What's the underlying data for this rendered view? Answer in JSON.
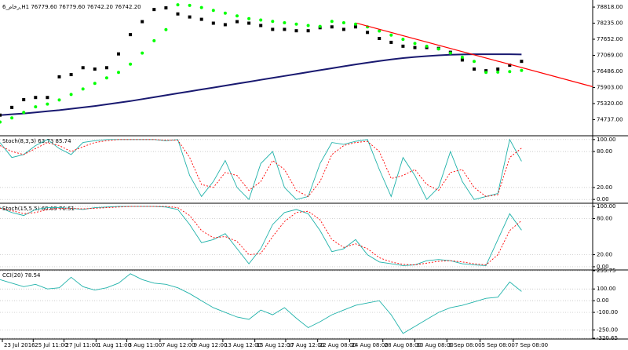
{
  "chart_data": [
    {
      "type": "line",
      "title": "6_رخام,H1  76779.60 76779.60 76742.20 76742.20",
      "x": [
        0,
        1,
        2,
        3,
        4,
        5,
        6,
        7,
        8,
        9,
        10,
        11,
        12,
        13,
        14,
        15,
        16,
        17,
        18,
        19,
        20,
        21,
        22,
        23,
        24,
        25,
        26,
        27,
        28,
        29,
        30,
        31,
        32,
        33,
        34,
        35,
        36,
        37,
        38,
        39,
        40,
        41,
        42,
        43,
        44
      ],
      "xlim": [
        0,
        50
      ],
      "ylim": [
        74180,
        78990
      ],
      "grid": false,
      "yticks": [
        {
          "value": 78818,
          "label": "78818.00"
        },
        {
          "value": 78235,
          "label": "78235.00"
        },
        {
          "value": 77652,
          "label": "77652.00"
        },
        {
          "value": 77069,
          "label": "77069.00"
        },
        {
          "value": 76486,
          "label": "76486.00"
        },
        {
          "value": 75903,
          "label": "75903.00"
        },
        {
          "value": 75320,
          "label": "75320.00"
        },
        {
          "value": 74737,
          "label": "74737.00"
        }
      ],
      "series": [
        {
          "color": "#191970",
          "style": "line",
          "values": [
            74900,
            74930,
            74960,
            75000,
            75040,
            75080,
            75130,
            75180,
            75230,
            75290,
            75350,
            75410,
            75480,
            75550,
            75620,
            75690,
            75760,
            75830,
            75900,
            75970,
            76040,
            76110,
            76180,
            76250,
            76320,
            76390,
            76460,
            76530,
            76600,
            76670,
            76740,
            76800,
            76860,
            76920,
            76970,
            77010,
            77040,
            77070,
            77090,
            77100,
            77110,
            77110,
            77110,
            77110,
            77100
          ]
        },
        {
          "color": "#000000",
          "style": "squares",
          "values": [
            74900,
            75180,
            75460,
            75540,
            75540,
            76290,
            76370,
            76620,
            76570,
            76620,
            77120,
            77820,
            78290,
            78730,
            78790,
            78570,
            78460,
            78375,
            78235,
            78180,
            78290,
            78235,
            78150,
            78010,
            78010,
            77960,
            77960,
            78070,
            78100,
            78010,
            78100,
            77900,
            77680,
            77540,
            77400,
            77350,
            77350,
            77320,
            77180,
            76900,
            76570,
            76510,
            76570,
            76710,
            76850
          ]
        },
        {
          "color": "#00ff00",
          "style": "dots",
          "values": [
            74650,
            74800,
            75000,
            75200,
            75300,
            75450,
            75650,
            75850,
            76050,
            76250,
            76450,
            76750,
            77150,
            77600,
            78000,
            78900,
            78880,
            78800,
            78700,
            78600,
            78500,
            78400,
            78350,
            78300,
            78250,
            78200,
            78150,
            78120,
            78300,
            78250,
            78200,
            78100,
            77950,
            77800,
            77650,
            77500,
            77400,
            77300,
            77150,
            77000,
            76850,
            76450,
            76460,
            76480,
            76520
          ]
        }
      ],
      "lines": [
        {
          "color": "#ff0000",
          "x": [
            30.1,
            50
          ],
          "y": [
            78235,
            75930
          ]
        }
      ]
    },
    {
      "type": "line",
      "title": "Stoch(8,3,3) 63.73 85.74",
      "x": [
        0,
        1,
        2,
        3,
        4,
        5,
        6,
        7,
        8,
        9,
        10,
        11,
        12,
        13,
        14,
        15,
        16,
        17,
        18,
        19,
        20,
        21,
        22,
        23,
        24,
        25,
        26,
        27,
        28,
        29,
        30,
        31,
        32,
        33,
        34,
        35,
        36,
        37,
        38,
        39,
        40,
        41,
        42,
        43,
        44
      ],
      "xlim": [
        0,
        50
      ],
      "ylim": [
        -5,
        105
      ],
      "grid": true,
      "yticks": [
        {
          "value": 100,
          "label": "100.00"
        },
        {
          "value": 80,
          "label": "80.00"
        },
        {
          "value": 20,
          "label": "20.00"
        },
        {
          "value": 0,
          "label": "0.00"
        }
      ],
      "series": [
        {
          "color": "#20b2aa",
          "style": "line",
          "values": [
            95,
            70,
            75,
            90,
            100,
            85,
            75,
            95,
            98,
            100,
            100,
            100,
            100,
            100,
            98,
            100,
            40,
            5,
            30,
            65,
            20,
            0,
            60,
            80,
            20,
            0,
            5,
            60,
            95,
            92,
            97,
            100,
            50,
            5,
            70,
            40,
            0,
            20,
            80,
            30,
            0,
            5,
            10,
            100,
            63.73
          ]
        },
        {
          "color": "#ff0000",
          "style": "dash",
          "values": [
            90,
            80,
            75,
            85,
            95,
            90,
            80,
            88,
            95,
            98,
            100,
            100,
            100,
            100,
            99,
            99,
            70,
            25,
            20,
            45,
            40,
            15,
            30,
            65,
            50,
            15,
            5,
            30,
            75,
            90,
            95,
            97,
            80,
            35,
            40,
            50,
            25,
            15,
            45,
            50,
            20,
            5,
            8,
            70,
            85.74
          ]
        }
      ]
    },
    {
      "type": "line",
      "title": "Stoch(15,5,5) 60.69 76.51",
      "x": [
        0,
        1,
        2,
        3,
        4,
        5,
        6,
        7,
        8,
        9,
        10,
        11,
        12,
        13,
        14,
        15,
        16,
        17,
        18,
        19,
        20,
        21,
        22,
        23,
        24,
        25,
        26,
        27,
        28,
        29,
        30,
        31,
        32,
        33,
        34,
        35,
        36,
        37,
        38,
        39,
        40,
        41,
        42,
        43,
        44
      ],
      "xlim": [
        0,
        50
      ],
      "ylim": [
        -4,
        104
      ],
      "grid": true,
      "yticks": [
        {
          "value": 100,
          "label": "100.00"
        },
        {
          "value": 80,
          "label": "80.00"
        },
        {
          "value": 20,
          "label": "20.00"
        },
        {
          "value": 0,
          "label": "0.00"
        }
      ],
      "series": [
        {
          "color": "#20b2aa",
          "style": "line",
          "values": [
            98,
            90,
            85,
            95,
            98,
            98,
            97,
            95,
            98,
            99,
            100,
            100,
            100,
            100,
            99,
            95,
            70,
            40,
            45,
            55,
            30,
            5,
            30,
            70,
            90,
            95,
            88,
            60,
            25,
            30,
            45,
            20,
            8,
            5,
            2,
            3,
            10,
            12,
            10,
            5,
            3,
            2,
            45,
            88,
            60.69
          ]
        },
        {
          "color": "#ff0000",
          "style": "dash",
          "values": [
            97,
            93,
            88,
            90,
            95,
            97,
            97,
            96,
            97,
            98,
            99,
            100,
            100,
            100,
            100,
            98,
            85,
            60,
            48,
            50,
            42,
            20,
            22,
            50,
            75,
            90,
            92,
            78,
            45,
            32,
            38,
            30,
            15,
            8,
            4,
            3,
            6,
            9,
            10,
            8,
            5,
            3,
            20,
            60,
            76.51
          ]
        }
      ]
    },
    {
      "type": "line",
      "title": "CCI(20) 78.54",
      "x": [
        0,
        1,
        2,
        3,
        4,
        5,
        6,
        7,
        8,
        9,
        10,
        11,
        12,
        13,
        14,
        15,
        16,
        17,
        18,
        19,
        20,
        21,
        22,
        23,
        24,
        25,
        26,
        27,
        28,
        29,
        30,
        31,
        32,
        33,
        34,
        35,
        36,
        37,
        38,
        39,
        40,
        41,
        42,
        43,
        44
      ],
      "xlim": [
        0,
        50
      ],
      "ylim": [
        -320.65,
        255.75
      ],
      "grid": true,
      "yticks": [
        255.75,
        {
          "value": 100,
          "label": "100.00"
        },
        {
          "value": 0,
          "label": "0.00"
        },
        {
          "value": -100,
          "label": "-100.00"
        },
        {
          "value": -250,
          "label": "-250.00"
        },
        -320.65
      ],
      "xticks": [
        {
          "value": 0.2,
          "label": "23 Jul 2016"
        },
        {
          "value": 2.8,
          "label": "25 Jul 11:00"
        },
        {
          "value": 5.4,
          "label": "27 Jul 11:00"
        },
        {
          "value": 8.1,
          "label": "1 Aug 11:00"
        },
        {
          "value": 10.7,
          "label": "3 Aug 11:00"
        },
        {
          "value": 13.5,
          "label": "7 Aug 12:00"
        },
        {
          "value": 16.2,
          "label": "9 Aug 12:00"
        },
        {
          "value": 18.8,
          "label": "13 Aug 12:00"
        },
        {
          "value": 21.5,
          "label": "15 Aug 12:00"
        },
        {
          "value": 24.1,
          "label": "17 Aug 12:00"
        },
        {
          "value": 26.8,
          "label": "22 Aug 08:00"
        },
        {
          "value": 29.5,
          "label": "24 Aug 08:00"
        },
        {
          "value": 32.3,
          "label": "28 Aug 08:00"
        },
        {
          "value": 35.0,
          "label": "30 Aug 08:00"
        },
        {
          "value": 37.7,
          "label": "3 Sep 08:00"
        },
        {
          "value": 40.5,
          "label": "5 Sep 08:00"
        },
        {
          "value": 43.3,
          "label": "7 Sep 08:00"
        }
      ],
      "series": [
        {
          "color": "#20b2aa",
          "style": "line",
          "values": [
            180,
            150,
            120,
            140,
            100,
            110,
            200,
            120,
            90,
            110,
            150,
            230,
            180,
            150,
            140,
            110,
            60,
            0,
            -60,
            -100,
            -140,
            -160,
            -80,
            -120,
            -60,
            -150,
            -230,
            -180,
            -120,
            -80,
            -40,
            -20,
            0,
            -120,
            -280,
            -220,
            -160,
            -100,
            -60,
            -40,
            -10,
            20,
            30,
            160,
            78.54
          ]
        }
      ]
    }
  ]
}
